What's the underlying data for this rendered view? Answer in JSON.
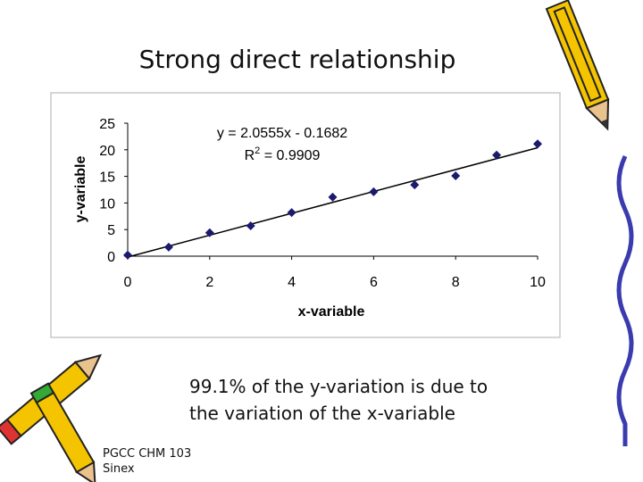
{
  "slide": {
    "title": "Strong direct relationship",
    "caption": [
      "99.1% of the y-variation is due to",
      "the variation of the x-variable"
    ],
    "footer": [
      "PGCC CHM 103",
      "Sinex"
    ]
  },
  "chart_data": {
    "type": "scatter",
    "x_label": "x-variable",
    "y_label": "y-variable",
    "equation": "y = 2.0555x - 0.1682",
    "r_squared": [
      "R",
      "2",
      " = 0.9909"
    ],
    "x": [
      0,
      1,
      2,
      3,
      4,
      5,
      6,
      7,
      8,
      9,
      10
    ],
    "series": [
      {
        "name": "y-variable",
        "color": "#1a1a6e",
        "values": [
          0.2,
          1.7,
          4.4,
          5.7,
          8.2,
          11.1,
          12.1,
          13.4,
          15.1,
          19.0,
          21.1
        ]
      }
    ],
    "trendline": {
      "slope": 2.0555,
      "intercept": -0.1682,
      "color": "#000000"
    },
    "xlim": [
      0,
      10
    ],
    "xticks": [
      0,
      2,
      4,
      6,
      8,
      10
    ],
    "ylim": [
      0,
      25
    ],
    "yticks": [
      0,
      5,
      10,
      15,
      20,
      25
    ],
    "grid": false
  }
}
